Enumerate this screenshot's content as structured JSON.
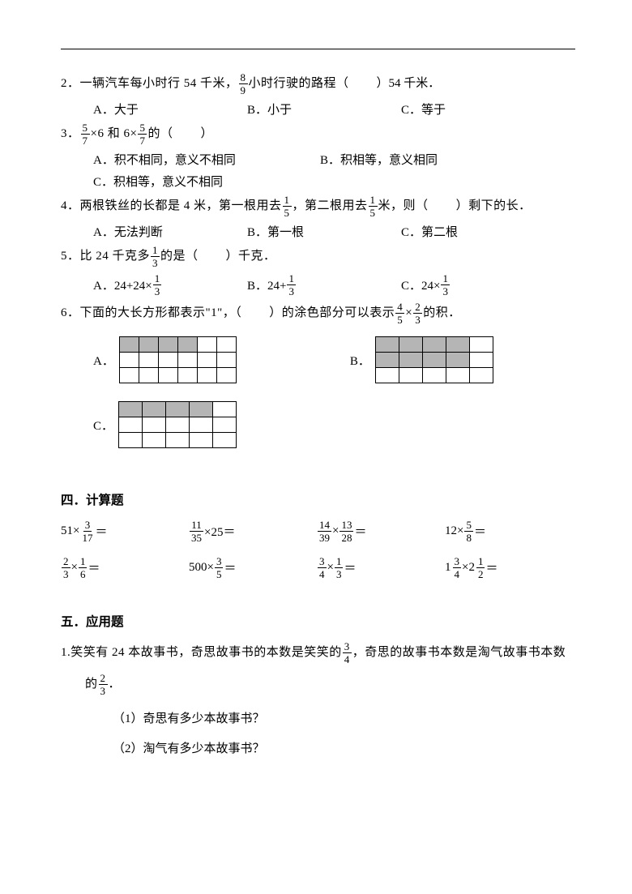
{
  "q2": {
    "num": "2．",
    "stem_a": "一辆汽车每小时行 54 千米，",
    "frac": {
      "n": "8",
      "d": "9"
    },
    "stem_b": "小时行驶的路程（",
    "stem_c": "）54 千米．",
    "opts": {
      "A": "A．大于",
      "B": "B．小于",
      "C": "C．等于"
    }
  },
  "q3": {
    "num": "3．",
    "f1": {
      "n": "5",
      "d": "7"
    },
    "mid1": "×6 和 6×",
    "f2": {
      "n": "5",
      "d": "7"
    },
    "tail": "的（",
    "tail2": "）",
    "opts": {
      "A": "A．积不相同，意义不相同",
      "B": "B．积相等，意义相同",
      "C": "C．积相等，意义不相同"
    }
  },
  "q4": {
    "num": "4．",
    "s1": "两根铁丝的长都是 4 米，第一根用去",
    "f1": {
      "n": "1",
      "d": "5"
    },
    "s2": "，第二根用去",
    "f2": {
      "n": "1",
      "d": "5"
    },
    "s3": "米，则（",
    "s4": "）剩下的长．",
    "opts": {
      "A": "A．无法判断",
      "B": "B．第一根",
      "C": "C．第二根"
    }
  },
  "q5": {
    "num": "5．",
    "s1": "比 24 千克多",
    "f1": {
      "n": "1",
      "d": "3"
    },
    "s2": "的是（",
    "s3": "）千克．",
    "A_pre": "A．24+24×",
    "A_f": {
      "n": "1",
      "d": "3"
    },
    "B_pre": "B．24+",
    "B_f": {
      "n": "1",
      "d": "3"
    },
    "C_pre": "C．24×",
    "C_f": {
      "n": "1",
      "d": "3"
    }
  },
  "q6": {
    "num": "6．",
    "s1": "下面的大长方形都表示\"1\"，（",
    "s2": "）的涂色部分可以表示",
    "f1": {
      "n": "4",
      "d": "5"
    },
    "mid": "×",
    "f2": {
      "n": "2",
      "d": "3"
    },
    "s3": "的积．",
    "labels": {
      "A": "A．",
      "B": "B．",
      "C": "C．"
    },
    "gridA": {
      "rows": 3,
      "cols": 6,
      "fill": [
        [
          0,
          0
        ],
        [
          0,
          1
        ],
        [
          0,
          2
        ],
        [
          0,
          3
        ]
      ]
    },
    "gridB": {
      "rows": 3,
      "cols": 5,
      "fill": [
        [
          0,
          0
        ],
        [
          0,
          1
        ],
        [
          0,
          2
        ],
        [
          0,
          3
        ],
        [
          1,
          0
        ],
        [
          1,
          1
        ],
        [
          1,
          2
        ],
        [
          1,
          3
        ]
      ]
    },
    "gridC": {
      "rows": 3,
      "cols": 5,
      "fill": [
        [
          0,
          0
        ],
        [
          0,
          1
        ],
        [
          0,
          2
        ],
        [
          0,
          3
        ]
      ]
    }
  },
  "sect4": "四．计算题",
  "calc": [
    [
      {
        "pre": "51×",
        "f": {
          "n": "3",
          "d": "17"
        },
        "post": "＝"
      },
      {
        "f1": {
          "n": "11",
          "d": "35"
        },
        "mid": "×25＝"
      },
      {
        "f1": {
          "n": "14",
          "d": "39"
        },
        "mid": "×",
        "f2": {
          "n": "13",
          "d": "28"
        },
        "post": "＝"
      },
      {
        "pre": "12×",
        "f": {
          "n": "5",
          "d": "8"
        },
        "post": "＝"
      }
    ],
    [
      {
        "f1": {
          "n": "2",
          "d": "3"
        },
        "mid": "×",
        "f2": {
          "n": "1",
          "d": "6"
        },
        "post": "＝"
      },
      {
        "pre": "500×",
        "f": {
          "n": "3",
          "d": "5"
        },
        "post": "＝"
      },
      {
        "f1": {
          "n": "3",
          "d": "4"
        },
        "mid": "×",
        "f2": {
          "n": "1",
          "d": "3"
        },
        "post": "＝"
      },
      {
        "m1": {
          "w": "1",
          "n": "3",
          "d": "4"
        },
        "mid": "×",
        "m2": {
          "w": "2",
          "n": "1",
          "d": "2"
        },
        "post": "＝"
      }
    ]
  ],
  "sect5": "五．应用题",
  "w1": {
    "num": "1.",
    "s1": "笑笑有 24 本故事书，奇思故事书的本数是笑笑的",
    "f1": {
      "n": "3",
      "d": "4"
    },
    "s2": "，奇思的故事书本数是淘气故事书本数",
    "s3": "的",
    "f2": {
      "n": "2",
      "d": "3"
    },
    "s4": "．",
    "sub1": "（1）奇思有多少本故事书？",
    "sub2": "（2）淘气有多少本故事书？"
  }
}
